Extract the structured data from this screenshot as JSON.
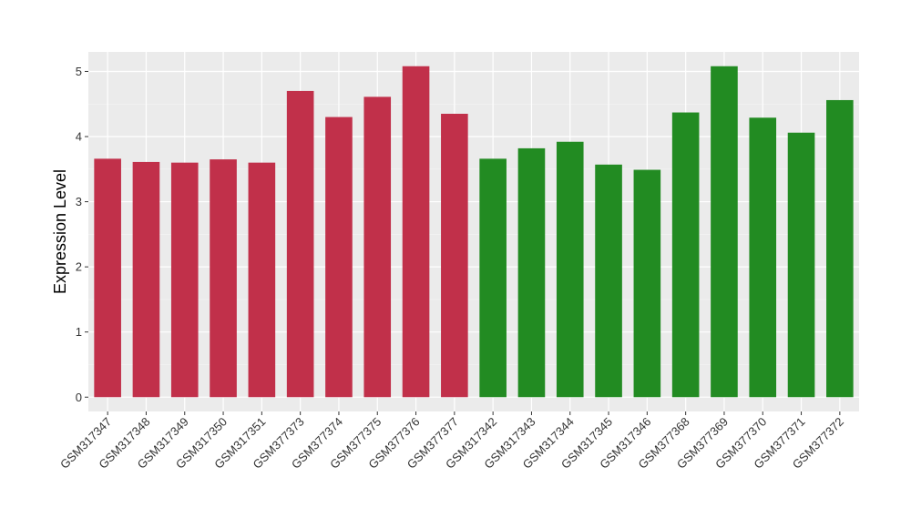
{
  "chart_data": {
    "type": "bar",
    "title": "",
    "xlabel": "",
    "ylabel": "Expression Level",
    "ylim": [
      -0.22,
      5.3
    ],
    "yticks": [
      0,
      1,
      2,
      3,
      4,
      5
    ],
    "grid": true,
    "panel_background": "#ebebeb",
    "categories": [
      "GSM317347",
      "GSM317348",
      "GSM317349",
      "GSM317350",
      "GSM317351",
      "GSM377373",
      "GSM377374",
      "GSM377375",
      "GSM377376",
      "GSM377377",
      "GSM317342",
      "GSM317343",
      "GSM317344",
      "GSM317345",
      "GSM317346",
      "GSM377368",
      "GSM377369",
      "GSM377370",
      "GSM377371",
      "GSM377372"
    ],
    "values": [
      3.66,
      3.61,
      3.6,
      3.65,
      3.6,
      4.7,
      4.3,
      4.61,
      5.08,
      4.35,
      3.66,
      3.82,
      3.92,
      3.57,
      3.49,
      4.37,
      5.08,
      4.29,
      4.06,
      4.56
    ],
    "colors": [
      "#c1304a",
      "#c1304a",
      "#c1304a",
      "#c1304a",
      "#c1304a",
      "#c1304a",
      "#c1304a",
      "#c1304a",
      "#c1304a",
      "#c1304a",
      "#228b22",
      "#228b22",
      "#228b22",
      "#228b22",
      "#228b22",
      "#228b22",
      "#228b22",
      "#228b22",
      "#228b22",
      "#228b22"
    ]
  }
}
